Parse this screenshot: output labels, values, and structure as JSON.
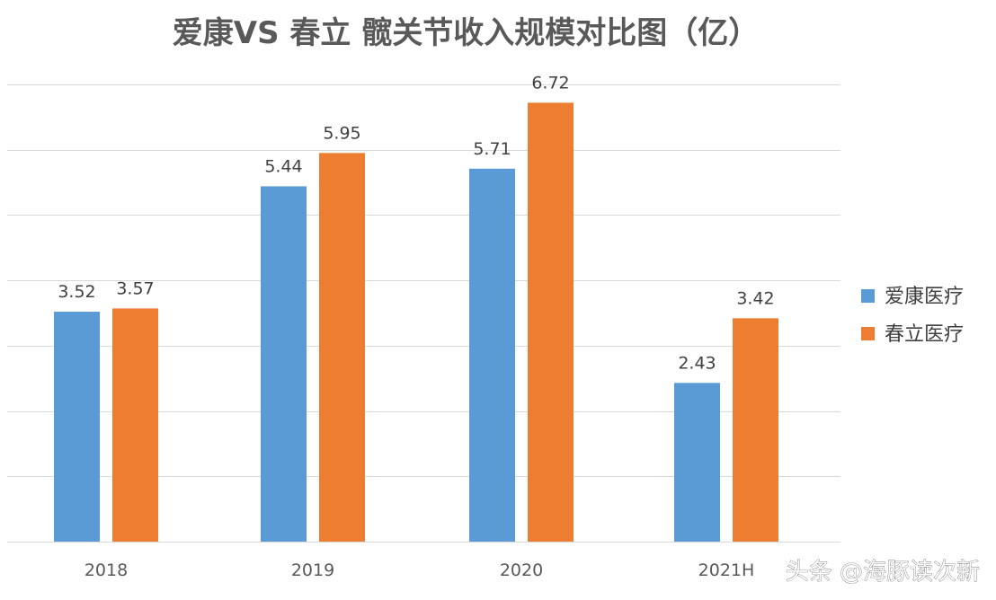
{
  "chart_data": {
    "type": "bar",
    "title": "爱康VS 春立 髋关节收入规模对比图（亿）",
    "categories": [
      "2018",
      "2019",
      "2020",
      "2021H"
    ],
    "series": [
      {
        "name": "爱康医疗",
        "values": [
          3.52,
          5.44,
          5.71,
          2.43
        ],
        "color": "#5b9bd5"
      },
      {
        "name": "春立医疗",
        "values": [
          3.57,
          5.95,
          6.72,
          3.42
        ],
        "color": "#ed7d31"
      }
    ],
    "ylim": [
      0,
      7
    ],
    "grid": true,
    "legend": "right",
    "show_y_tick_labels": false
  },
  "watermark": {
    "text": "头条 @海豚读次新"
  },
  "colors": {
    "background": "#ffffff",
    "gridline": "#d9d9d9",
    "title": "#595959"
  }
}
